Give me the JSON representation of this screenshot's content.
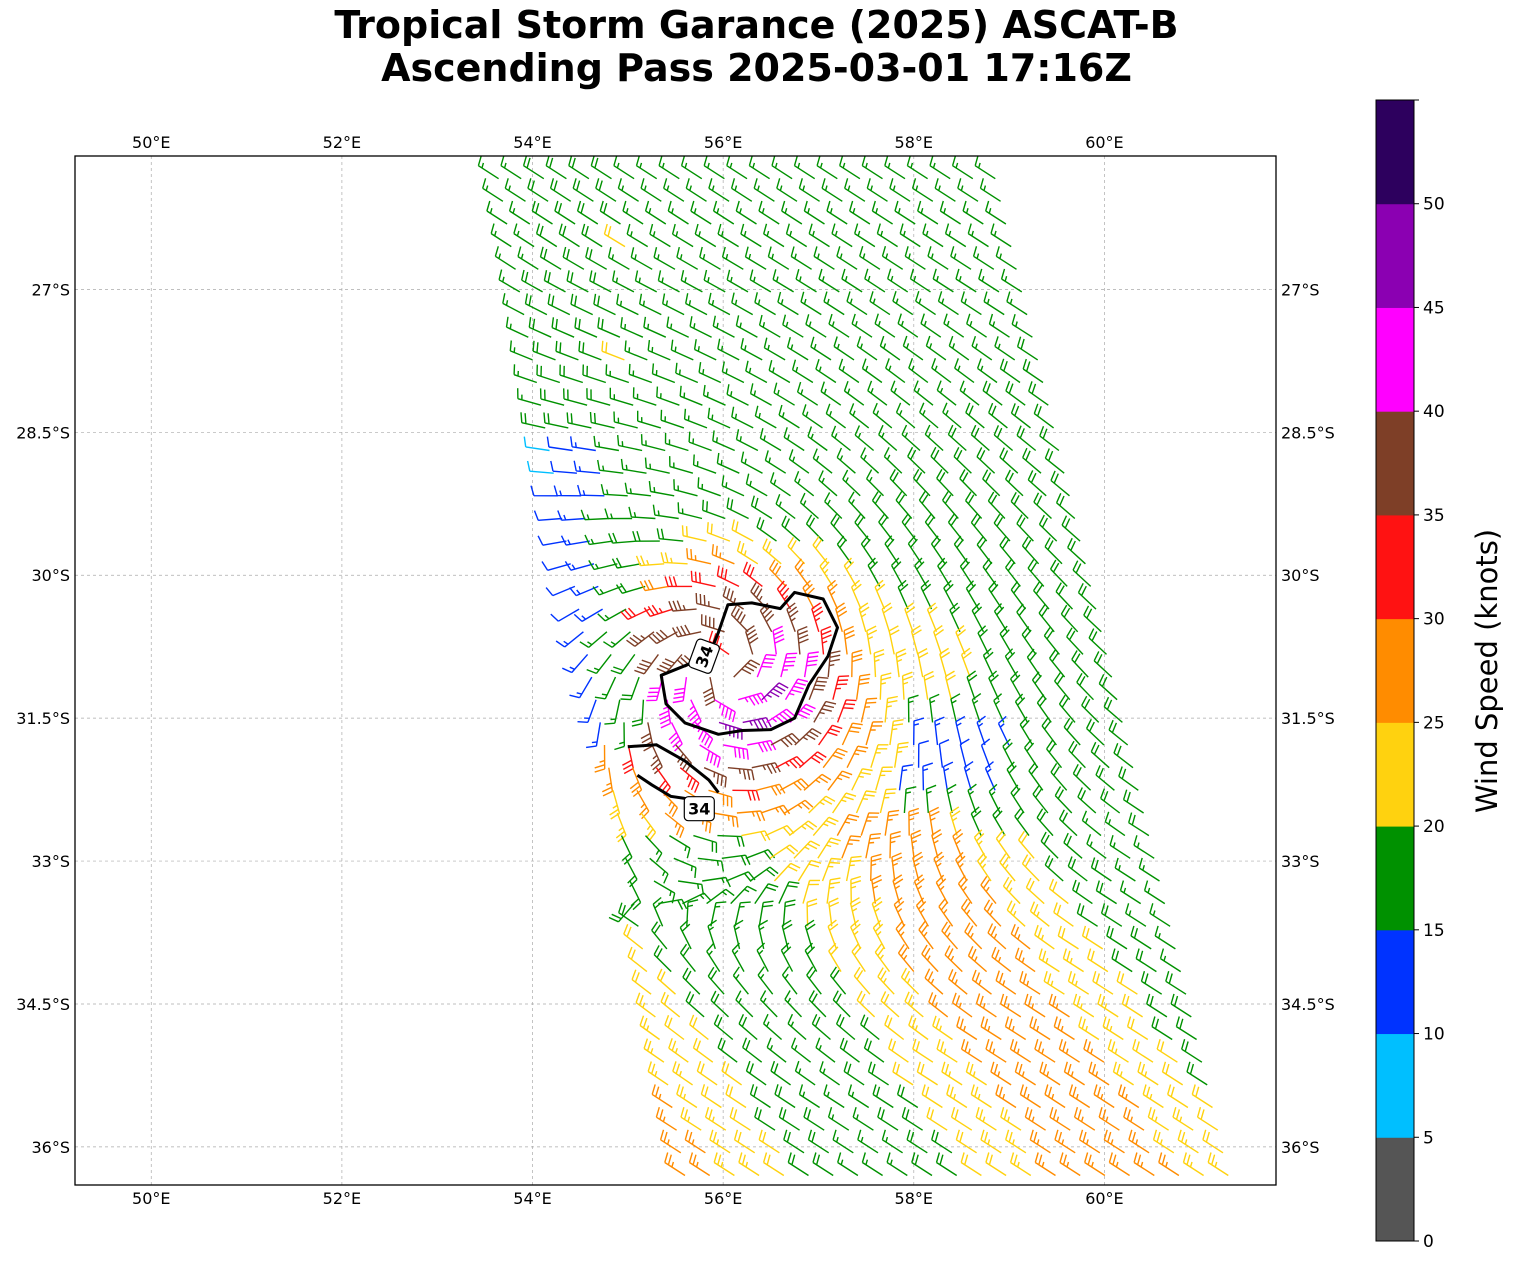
{
  "title": {
    "line1": "Tropical Storm Garance (2025) ASCAT-B",
    "line2": "Ascending Pass 2025-03-01 17:16Z"
  },
  "map": {
    "lon_range": [
      49.2,
      61.8
    ],
    "lat_range": [
      -36.4,
      -25.6
    ],
    "lon_ticks": [
      {
        "value": 50,
        "label": "50°E"
      },
      {
        "value": 52,
        "label": "52°E"
      },
      {
        "value": 54,
        "label": "54°E"
      },
      {
        "value": 56,
        "label": "56°E"
      },
      {
        "value": 58,
        "label": "58°E"
      },
      {
        "value": 60,
        "label": "60°E"
      }
    ],
    "lat_ticks": [
      {
        "value": -27,
        "label": "27°S"
      },
      {
        "value": -28.5,
        "label": "28.5°S"
      },
      {
        "value": -30,
        "label": "30°S"
      },
      {
        "value": -31.5,
        "label": "31.5°S"
      },
      {
        "value": -33,
        "label": "33°S"
      },
      {
        "value": -34.5,
        "label": "34.5°S"
      },
      {
        "value": -36,
        "label": "36°S"
      }
    ],
    "gridlines": true,
    "storm_center": {
      "lon": 56.0,
      "lat": -31.0
    },
    "swath": {
      "lat_top": -25.6,
      "lat_bottom": -36.3,
      "west_lon_top": 53.6,
      "west_lon_bottom": 55.6,
      "east_lon_top": 58.8,
      "east_lon_bottom": 61.3
    },
    "contour_34kt": {
      "label": "34",
      "main_ring": [
        [
          56.05,
          -30.31
        ],
        [
          56.3,
          -30.29
        ],
        [
          56.6,
          -30.35
        ],
        [
          56.75,
          -30.18
        ],
        [
          57.05,
          -30.25
        ],
        [
          57.2,
          -30.55
        ],
        [
          57.1,
          -30.85
        ],
        [
          56.9,
          -31.15
        ],
        [
          56.75,
          -31.5
        ],
        [
          56.5,
          -31.62
        ],
        [
          56.2,
          -31.63
        ],
        [
          55.95,
          -31.67
        ],
        [
          55.6,
          -31.55
        ],
        [
          55.4,
          -31.35
        ],
        [
          55.35,
          -31.05
        ],
        [
          55.6,
          -30.95
        ],
        [
          55.85,
          -30.85
        ],
        [
          55.95,
          -30.6
        ],
        [
          56.05,
          -30.31
        ]
      ],
      "secondary_line": [
        [
          55.0,
          -31.8
        ],
        [
          55.3,
          -31.78
        ],
        [
          55.6,
          -31.95
        ],
        [
          55.85,
          -32.15
        ],
        [
          55.95,
          -32.28
        ]
      ],
      "secondary_line_lower": [
        [
          55.1,
          -32.1
        ],
        [
          55.25,
          -32.2
        ],
        [
          55.45,
          -32.32
        ],
        [
          55.65,
          -32.35
        ]
      ],
      "label_positions": [
        {
          "lon": 55.8,
          "lat": -30.85,
          "rotate": -70
        },
        {
          "lon": 55.75,
          "lat": -32.45,
          "rotate": 0
        }
      ]
    }
  },
  "colorbar": {
    "title": "Wind Speed (knots)",
    "min": 0,
    "max": 55,
    "bins": [
      {
        "from": 0,
        "to": 5,
        "color": "#555555"
      },
      {
        "from": 5,
        "to": 10,
        "color": "#00bfff"
      },
      {
        "from": 10,
        "to": 15,
        "color": "#0033ff"
      },
      {
        "from": 15,
        "to": 20,
        "color": "#009100"
      },
      {
        "from": 20,
        "to": 25,
        "color": "#ffd20f"
      },
      {
        "from": 25,
        "to": 30,
        "color": "#ff8c00"
      },
      {
        "from": 30,
        "to": 35,
        "color": "#ff1212"
      },
      {
        "from": 35,
        "to": 40,
        "color": "#7e3f27"
      },
      {
        "from": 40,
        "to": 45,
        "color": "#ff00ff"
      },
      {
        "from": 45,
        "to": 50,
        "color": "#8b00b2"
      },
      {
        "from": 50,
        "to": 55,
        "color": "#2d005e"
      }
    ],
    "ticks": [
      {
        "value": 0,
        "label": "0"
      },
      {
        "value": 5,
        "label": "5"
      },
      {
        "value": 10,
        "label": "10"
      },
      {
        "value": 15,
        "label": "15"
      },
      {
        "value": 20,
        "label": "20"
      },
      {
        "value": 25,
        "label": "25"
      },
      {
        "value": 30,
        "label": "30"
      },
      {
        "value": 35,
        "label": "35"
      },
      {
        "value": 40,
        "label": "40"
      },
      {
        "value": 45,
        "label": "45"
      },
      {
        "value": 50,
        "label": "50"
      }
    ]
  }
}
